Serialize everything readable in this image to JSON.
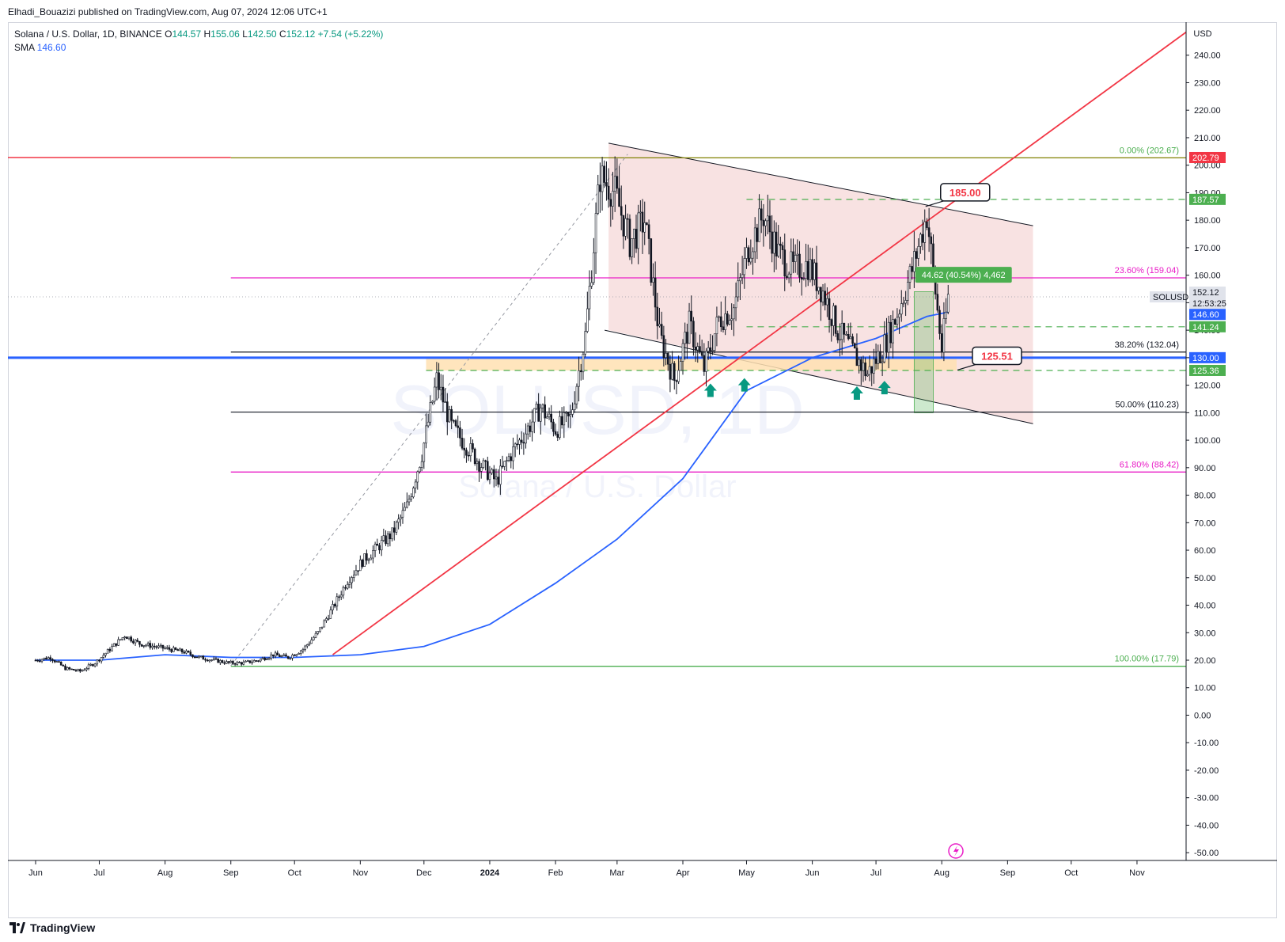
{
  "publisher_line": "Elhadi_Bouazizi published on TradingView.com, Aug 07, 2024 12:06 UTC+1",
  "legend": {
    "symbol": "Solana / U.S. Dollar, 1D, BINANCE",
    "open_label": "O",
    "open": "144.57",
    "high_label": "H",
    "high": "155.06",
    "low_label": "L",
    "low": "142.50",
    "close_label": "C",
    "close": "152.12",
    "change": "+7.54 (+5.22%)",
    "sma_label": "SMA",
    "sma_value": "146.60"
  },
  "watermark": {
    "symbol": "SOLUSD, 1D",
    "name": "Solana / U.S. Dollar"
  },
  "footer": {
    "brand": "TradingView"
  },
  "colors": {
    "up": "#089981",
    "sma": "#2962ff",
    "trend": "#f23645",
    "fib_pink": "#e91ec7",
    "fib_green": "#4caf50",
    "channel_fill": "#f5d5d5",
    "zone_fill": "#ffe0b2"
  },
  "chart_data": {
    "type": "line",
    "title": "Solana / U.S. Dollar, 1D, BINANCE",
    "currency": "USD",
    "ylim": [
      -55,
      250
    ],
    "y_ticks": [
      -50,
      -40,
      -30,
      -20,
      -10,
      0,
      10,
      20,
      30,
      40,
      50,
      60,
      70,
      80,
      90,
      100,
      110,
      120,
      130,
      140,
      150,
      160,
      170,
      180,
      190,
      200,
      210,
      220,
      230,
      240
    ],
    "x_ticks": [
      "Jun",
      "Jul",
      "Aug",
      "Sep",
      "Oct",
      "Nov",
      "Dec",
      "2024",
      "Feb",
      "Mar",
      "Apr",
      "May",
      "Jun",
      "Jul",
      "Aug",
      "Sep",
      "Oct",
      "Nov"
    ],
    "x_tick_days": [
      0,
      30,
      61,
      92,
      122,
      153,
      183,
      214,
      245,
      274,
      305,
      335,
      366,
      396,
      427,
      458,
      488,
      519
    ],
    "series": [
      {
        "name": "SOLUSD",
        "x": [
          0,
          7,
          14,
          21,
          28,
          35,
          42,
          49,
          56,
          63,
          70,
          77,
          84,
          91,
          98,
          105,
          112,
          119,
          126,
          133,
          140,
          147,
          154,
          161,
          168,
          175,
          182,
          189,
          196,
          203,
          210,
          217,
          224,
          231,
          238,
          245,
          252,
          259,
          266,
          273,
          280,
          287,
          294,
          301,
          308,
          315,
          322,
          329,
          336,
          343,
          350,
          357,
          364,
          371,
          378,
          385,
          392,
          399,
          406,
          413,
          420,
          427,
          430
        ],
        "values": [
          20,
          21,
          17,
          16,
          19,
          24,
          29,
          26,
          25,
          24,
          23,
          21,
          20,
          19,
          19,
          20,
          22,
          21,
          24,
          30,
          39,
          49,
          56,
          61,
          66,
          76,
          95,
          122,
          105,
          98,
          91,
          85,
          95,
          103,
          112,
          104,
          108,
          138,
          196,
          190,
          172,
          180,
          138,
          122,
          142,
          126,
          144,
          148,
          170,
          182,
          168,
          162,
          164,
          154,
          140,
          132,
          124,
          133,
          146,
          162,
          182,
          133,
          152
        ]
      },
      {
        "name": "SMA",
        "x": [
          0,
          30,
          61,
          92,
          122,
          153,
          183,
          214,
          245,
          274,
          305,
          335,
          366,
          396,
          420,
          430
        ],
        "values": [
          20,
          20,
          22,
          21,
          21,
          22,
          25,
          33,
          48,
          64,
          86,
          118,
          130,
          137,
          145,
          146.6
        ]
      }
    ],
    "fib_levels": [
      {
        "label": "0.00% (202.67)",
        "value": 202.67
      },
      {
        "label": "23.60% (159.04)",
        "value": 159.04
      },
      {
        "label": "38.20% (132.04)",
        "value": 132.04
      },
      {
        "label": "50.00% (110.23)",
        "value": 110.23
      },
      {
        "label": "61.80% (88.42)",
        "value": 88.42
      },
      {
        "label": "100.00% (17.79)",
        "value": 17.79
      }
    ],
    "price_labels": [
      {
        "text": "202.79",
        "value": 202.79
      },
      {
        "text": "187.57",
        "value": 187.57
      },
      {
        "text": "SOLUSD",
        "value": 152.12
      },
      {
        "text": "152.12",
        "value": 152.12
      },
      {
        "text": "12:53:25",
        "value": 152.12
      },
      {
        "text": "146.60",
        "value": 146.6
      },
      {
        "text": "141.24",
        "value": 141.24
      },
      {
        "text": "130.00",
        "value": 130
      },
      {
        "text": "125.36",
        "value": 125.36
      }
    ],
    "callouts": [
      {
        "text": "185.00",
        "x": 419,
        "value": 185
      },
      {
        "text": "125.51",
        "x": 434,
        "value": 125.51
      }
    ],
    "measurement_label": "44.62 (40.54%) 4,462"
  }
}
